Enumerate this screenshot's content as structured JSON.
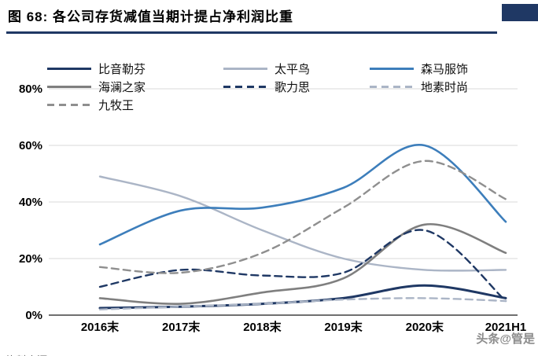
{
  "header": {
    "figure_title": "图 68:  各公司存货减值当期计提占净利润比重",
    "accent_color": "#1F3864"
  },
  "watermark": "头条@管是",
  "footer": {
    "source_partial": "资料来源："
  },
  "chart_data": {
    "type": "line",
    "title": "各公司存货减值当期计提占净利润比重",
    "categories": [
      "2016末",
      "2017末",
      "2018末",
      "2019末",
      "2020末",
      "2021H1"
    ],
    "series": [
      {
        "name": "比音勒芬",
        "color": "#1F3864",
        "style": "solid",
        "width": 3,
        "values": [
          2.5,
          3,
          4,
          6,
          10.5,
          6
        ]
      },
      {
        "name": "太平鸟",
        "color": "#ABB5C6",
        "style": "solid",
        "width": 2.4,
        "values": [
          49,
          42,
          30,
          20,
          16,
          16
        ]
      },
      {
        "name": "森马服饰",
        "color": "#3D7EBB",
        "style": "solid",
        "width": 2.6,
        "values": [
          25,
          37,
          38,
          45,
          60,
          33
        ]
      },
      {
        "name": "海澜之家",
        "color": "#7F7F7F",
        "style": "solid",
        "width": 2.6,
        "values": [
          6,
          4,
          8,
          13,
          32,
          22
        ]
      },
      {
        "name": "歌力思",
        "color": "#1F3864",
        "style": "dashed",
        "width": 2.4,
        "values": [
          10,
          16,
          14,
          15,
          30,
          5
        ]
      },
      {
        "name": "地素时尚",
        "color": "#ABB5C6",
        "style": "dashed",
        "width": 2.4,
        "values": [
          2,
          3,
          4,
          5.5,
          6,
          5
        ]
      },
      {
        "name": "九牧王",
        "color": "#8F8F8F",
        "style": "dashed",
        "width": 2.4,
        "values": [
          17,
          15,
          22,
          38,
          54.5,
          41
        ]
      }
    ],
    "ylim": [
      0,
      80
    ],
    "yticks": [
      {
        "value": 0,
        "label": "0%"
      },
      {
        "value": 20,
        "label": "20%"
      },
      {
        "value": 40,
        "label": "40%"
      },
      {
        "value": 60,
        "label": "60%"
      },
      {
        "value": 80,
        "label": "80%"
      }
    ],
    "grid": true,
    "legend_position": "top-left",
    "grid_color": "#D9D9D9",
    "axis_color": "#404040"
  }
}
